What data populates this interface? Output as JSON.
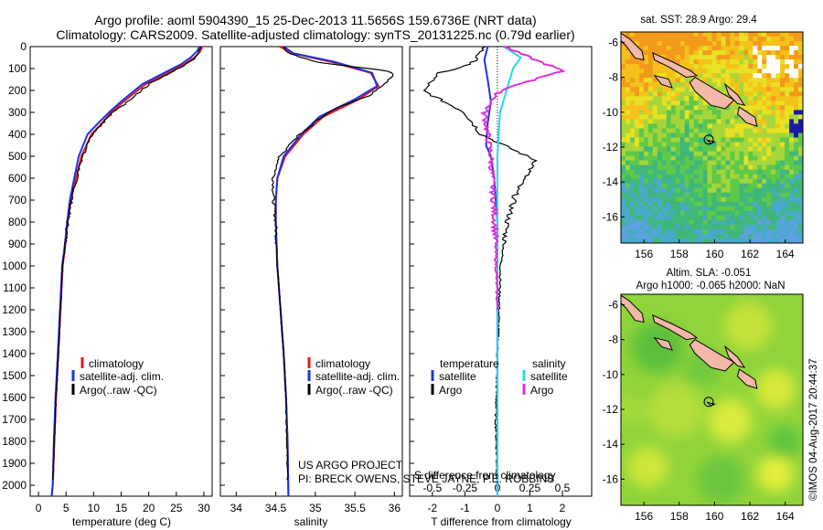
{
  "header": {
    "line1": "Argo profile: aoml 5904390_15 25-Dec-2013 11.5656S 159.6736E (NRT data)",
    "line2": "Climatology: CARS2009. Satellite-adjusted climatology: synTS_20131225.nc (0.79d earlier)"
  },
  "colors": {
    "climatology": "#e41a1c",
    "satellite": "#1f33e0",
    "argo": "#000000",
    "sal_satellite": "#22d8ee",
    "sal_argo": "#e030d8"
  },
  "depth_axis": {
    "range": [
      0,
      2050
    ],
    "ticks": [
      0,
      100,
      200,
      300,
      400,
      500,
      600,
      700,
      800,
      900,
      1000,
      1100,
      1200,
      1300,
      1400,
      1500,
      1600,
      1700,
      1800,
      1900,
      2000
    ]
  },
  "legend_main": {
    "climatology": "climatology",
    "satellite": "satellite-adj. clim.",
    "argo": "Argo(..raw -QC)"
  },
  "legend_diff": {
    "temperature_header": "temperature",
    "salinity_header": "salinity",
    "satellite": "satellite",
    "argo": "Argo"
  },
  "credit": {
    "line1": "US ARGO PROJECT",
    "line2": "PI: BRECK OWENS, STEVE JAYNE, P.E. ROBBINS"
  },
  "maps": {
    "sst_title": "sat. SST: 28.9 Argo: 29.4",
    "sla_title1": "Altim. SLA: -0.051",
    "sla_title2": "Argo h1000: -0.065 h2000: NaN",
    "lon_ticks": [
      156,
      158,
      160,
      162,
      164
    ],
    "lat_ticks": [
      -6,
      -8,
      -10,
      -12,
      -14,
      -16
    ],
    "lon_range": [
      154.7,
      165.0
    ],
    "lat_range": [
      -17.5,
      -5.4
    ],
    "float_position": {
      "lon": 159.67,
      "lat": -11.57
    }
  },
  "watermark": "©IMOS 04-Aug-2017 20:44:37",
  "chart_data": [
    {
      "type": "line",
      "name": "temperature-profile",
      "xlabel": "temperature (deg C)",
      "ylabel": "",
      "xlim": [
        -1.5,
        31.5
      ],
      "xticks": [
        0,
        5,
        10,
        15,
        20,
        25,
        30
      ],
      "ylim": [
        2050,
        0
      ],
      "series": [
        {
          "name": "climatology",
          "color_key": "climatology",
          "x": [
            29.7,
            29.4,
            28.3,
            26.5,
            23.5,
            19.5,
            15.5,
            13.2,
            11.5,
            9.6,
            7.8,
            6.8,
            5.9,
            5.3,
            4.9,
            4.4,
            4.0,
            3.6,
            3.2,
            2.9,
            2.6,
            2.4
          ],
          "y": [
            0,
            20,
            50,
            80,
            120,
            170,
            250,
            300,
            350,
            400,
            500,
            600,
            700,
            800,
            900,
            1000,
            1200,
            1400,
            1600,
            1800,
            2000,
            2050
          ]
        },
        {
          "name": "satellite-adj. clim.",
          "color_key": "satellite",
          "x": [
            29.2,
            28.8,
            27.6,
            25.9,
            22.8,
            18.9,
            15.0,
            12.8,
            10.8,
            8.9,
            7.3,
            6.5,
            5.7,
            5.2,
            4.8,
            4.3,
            3.9,
            3.5,
            3.1,
            2.8,
            2.6,
            2.4
          ],
          "y": [
            0,
            20,
            50,
            80,
            120,
            170,
            250,
            300,
            350,
            400,
            500,
            600,
            700,
            800,
            900,
            1000,
            1200,
            1400,
            1600,
            1800,
            2000,
            2050
          ]
        },
        {
          "name": "Argo(..raw -QC)",
          "color_key": "argo",
          "x": [
            29.4,
            29.3,
            28.5,
            26.8,
            24.0,
            20.1,
            16.3,
            13.5,
            11.6,
            9.8,
            8.0,
            6.9,
            6.0,
            5.3,
            4.9,
            4.4,
            4.0,
            3.6,
            3.2,
            2.9,
            2.6
          ],
          "y": [
            0,
            20,
            50,
            80,
            120,
            170,
            250,
            300,
            350,
            400,
            500,
            600,
            700,
            800,
            900,
            1000,
            1200,
            1400,
            1600,
            1800,
            1980
          ]
        }
      ]
    },
    {
      "type": "line",
      "name": "salinity-profile",
      "xlabel": "salinity",
      "ylabel": "",
      "xlim": [
        33.8,
        36.1
      ],
      "xticks": [
        34,
        34.5,
        35,
        35.5,
        36
      ],
      "ylim": [
        2050,
        0
      ],
      "series": [
        {
          "name": "climatology",
          "color_key": "climatology",
          "x": [
            34.55,
            34.7,
            35.2,
            35.7,
            35.8,
            35.55,
            35.1,
            34.85,
            34.62,
            34.52,
            34.5,
            34.5,
            34.52,
            34.56,
            34.6,
            34.63,
            34.65,
            34.66
          ],
          "y": [
            0,
            30,
            70,
            120,
            180,
            240,
            320,
            400,
            500,
            600,
            700,
            800,
            1000,
            1200,
            1400,
            1600,
            1800,
            2050
          ]
        },
        {
          "name": "satellite-adj. clim.",
          "color_key": "satellite",
          "x": [
            34.6,
            34.72,
            35.25,
            35.72,
            35.78,
            35.5,
            35.05,
            34.82,
            34.6,
            34.52,
            34.5,
            34.5,
            34.52,
            34.56,
            34.6,
            34.63,
            34.65,
            34.66
          ],
          "y": [
            0,
            30,
            70,
            120,
            180,
            240,
            320,
            400,
            500,
            600,
            700,
            800,
            1000,
            1200,
            1400,
            1600,
            1800,
            2050
          ]
        },
        {
          "name": "Argo(..raw -QC)",
          "color_key": "argo",
          "x": [
            34.6,
            34.65,
            35.0,
            35.9,
            36.0,
            35.7,
            35.2,
            34.8,
            34.55,
            34.47,
            34.47,
            34.5,
            34.52,
            34.56,
            34.6,
            34.63,
            34.65
          ],
          "y": [
            0,
            30,
            70,
            110,
            130,
            220,
            290,
            400,
            500,
            600,
            700,
            800,
            1000,
            1200,
            1400,
            1600,
            1980
          ]
        }
      ]
    },
    {
      "type": "line",
      "name": "difference-from-climatology",
      "xlabel": "T difference from climatology",
      "xlabel_top": "S difference from climatology",
      "xlim": [
        -2.7,
        2.9
      ],
      "xticks": [
        -2,
        -1,
        0,
        1,
        2
      ],
      "xlim_salinity": [
        -0.675,
        0.725
      ],
      "xticks_salinity": [
        -0.5,
        -0.25,
        0,
        0.25,
        0.5
      ],
      "xticklabels_salinity": [
        "-0.5",
        "-0.25",
        "0",
        "0.25",
        "0.5"
      ],
      "ylim": [
        2050,
        0
      ],
      "series": [
        {
          "name": "temperature satellite",
          "color_key": "satellite",
          "axis": "temperature",
          "x": [
            -0.3,
            -0.4,
            -0.3,
            -0.2,
            -0.3,
            -0.35,
            -0.2,
            -0.1,
            -0.05,
            0,
            0,
            0,
            0,
            0
          ],
          "y": [
            0,
            60,
            150,
            250,
            350,
            450,
            500,
            600,
            700,
            800,
            1000,
            1400,
            1800,
            2050
          ]
        },
        {
          "name": "temperature Argo",
          "color_key": "argo",
          "axis": "temperature",
          "x": [
            -0.4,
            -0.8,
            -1.8,
            -2.3,
            -1.0,
            -0.5,
            0.2,
            1.2,
            0.6,
            0.3,
            0.1,
            0.0,
            -0.05,
            0
          ],
          "y": [
            0,
            80,
            120,
            200,
            300,
            400,
            450,
            520,
            650,
            800,
            1000,
            1400,
            1700,
            1980
          ]
        },
        {
          "name": "salinity satellite",
          "color_key": "sal_satellite",
          "axis": "salinity",
          "x": [
            0.05,
            0.18,
            0.12,
            0.02,
            0.0,
            0.0,
            0.0,
            0.0
          ],
          "y": [
            0,
            50,
            100,
            300,
            500,
            800,
            1400,
            2050
          ]
        },
        {
          "name": "salinity Argo",
          "color_key": "sal_argo",
          "axis": "salinity",
          "x": [
            0.05,
            0.25,
            0.5,
            0.02,
            -0.1,
            -0.05,
            -0.02,
            0.0
          ],
          "y": [
            0,
            50,
            110,
            200,
            300,
            500,
            800,
            1200
          ]
        }
      ]
    },
    {
      "type": "heatmap",
      "name": "sst-map",
      "title": "sat. SST: 28.9 Argo: 29.4",
      "xlim": [
        154.7,
        165.0
      ],
      "ylim": [
        -17.5,
        -5.4
      ],
      "xticks": [
        156,
        158,
        160,
        162,
        164
      ],
      "yticks": [
        -6,
        -8,
        -10,
        -12,
        -14,
        -16
      ],
      "marker": {
        "lon": 159.67,
        "lat": -11.57
      }
    },
    {
      "type": "heatmap",
      "name": "sla-map",
      "title": "Altim. SLA: -0.051 / Argo h1000: -0.065 h2000: NaN",
      "xlim": [
        154.7,
        165.0
      ],
      "ylim": [
        -17.5,
        -5.4
      ],
      "xticks": [
        156,
        158,
        160,
        162,
        164
      ],
      "yticks": [
        -6,
        -8,
        -10,
        -12,
        -14,
        -16
      ],
      "marker": {
        "lon": 159.67,
        "lat": -11.57
      }
    }
  ]
}
